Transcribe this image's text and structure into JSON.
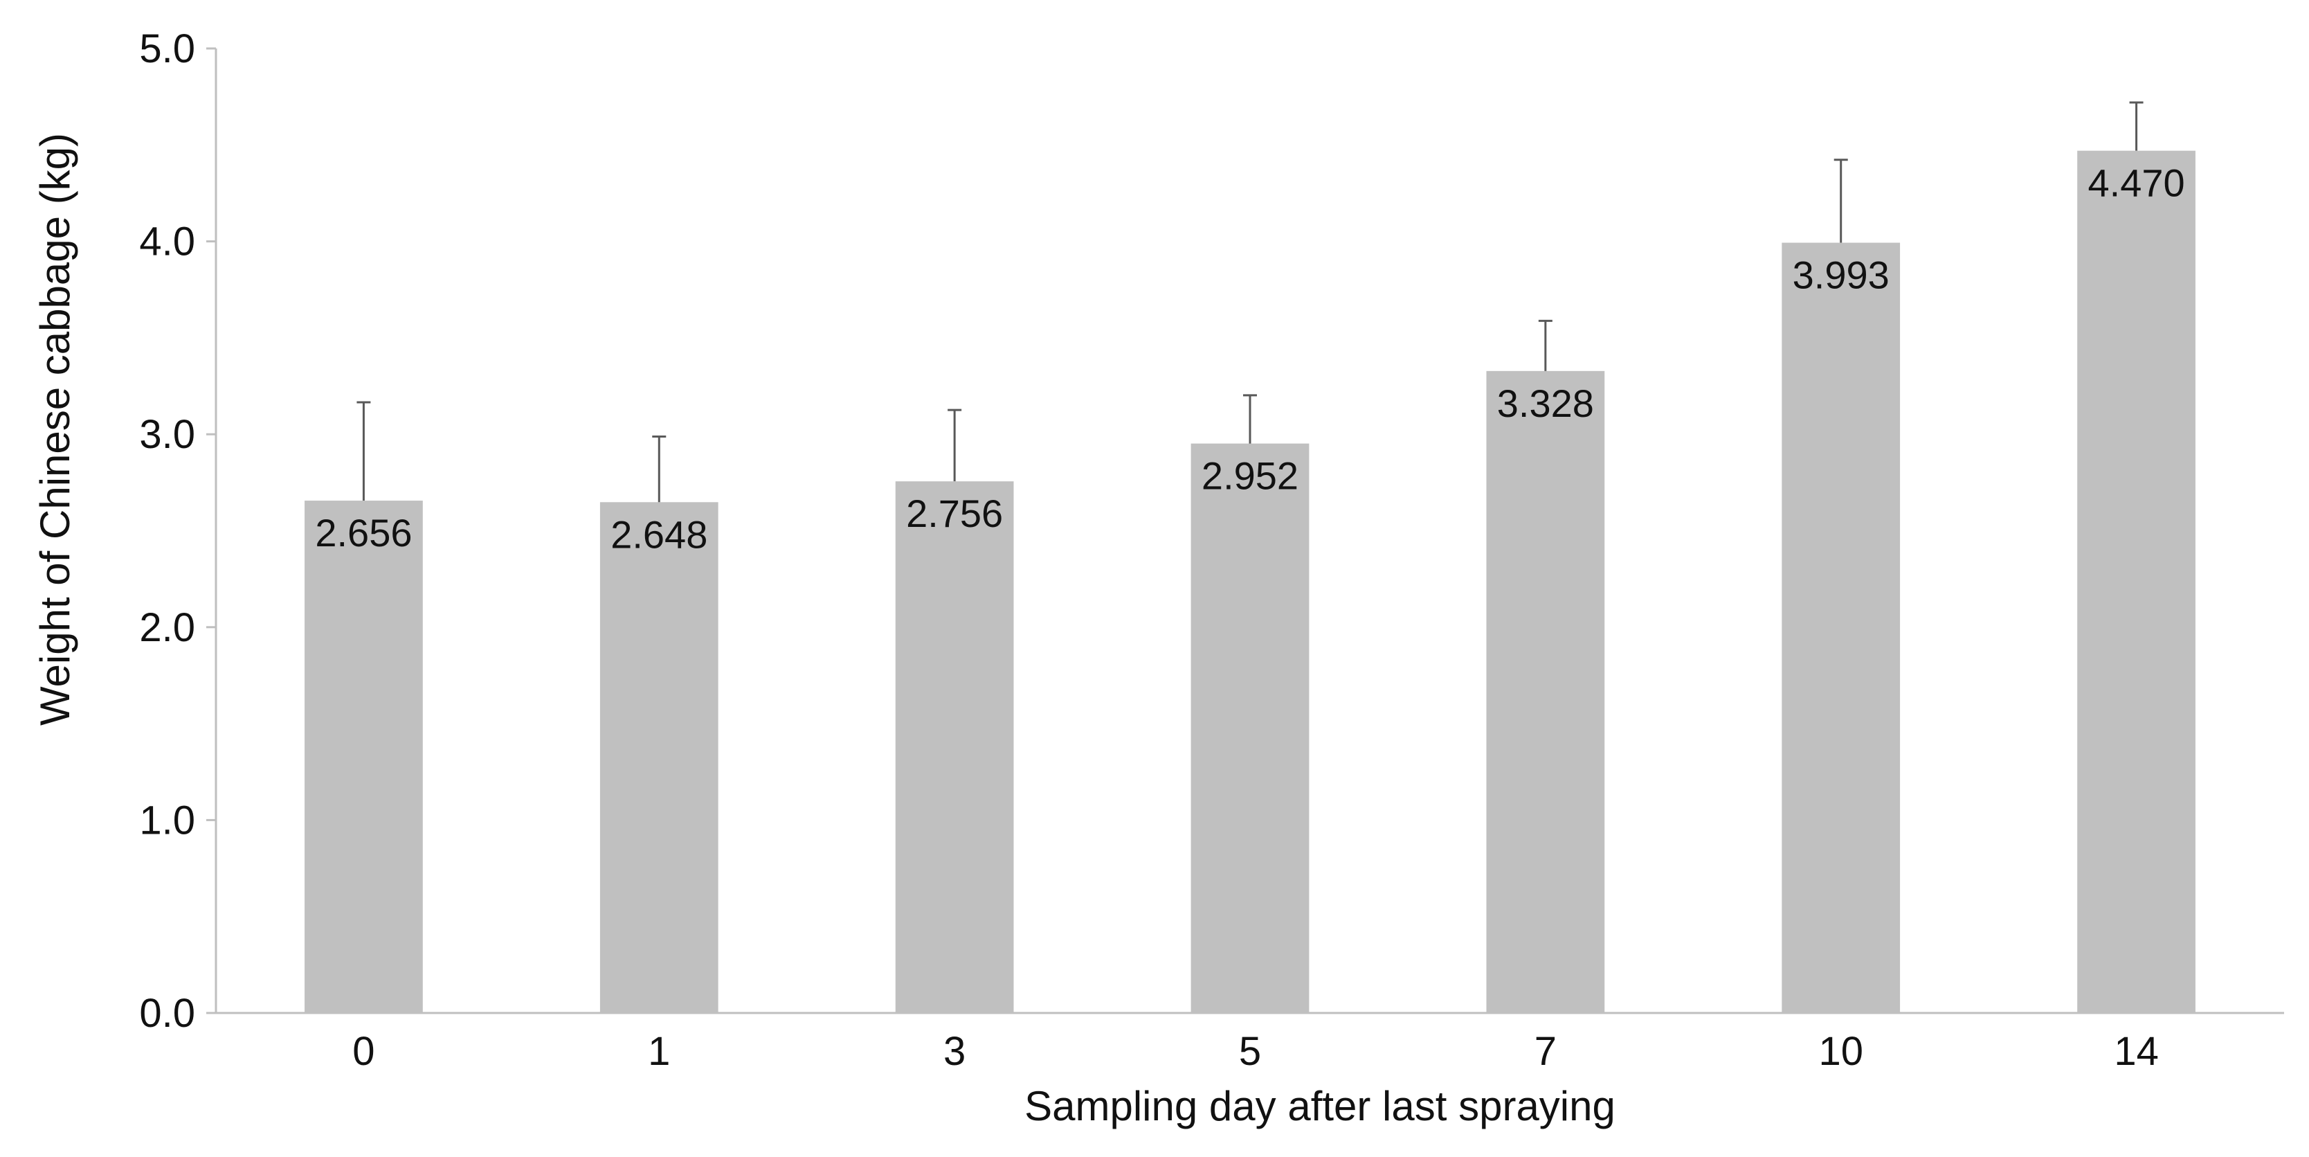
{
  "chart_data": {
    "type": "bar",
    "title": "",
    "xlabel": "Sampling day after last spraying",
    "ylabel": "Weight of Chinese cabbage (kg)",
    "categories": [
      "0",
      "1",
      "3",
      "5",
      "7",
      "10",
      "14"
    ],
    "values": [
      2.656,
      2.648,
      2.756,
      2.952,
      3.328,
      3.993,
      4.47
    ],
    "data_labels": [
      "2.656",
      "2.648",
      "2.756",
      "2.952",
      "3.328",
      "3.993",
      "4.470"
    ],
    "error_upper": [
      0.51,
      0.34,
      0.37,
      0.25,
      0.26,
      0.43,
      0.25
    ],
    "ylim": [
      0,
      5
    ],
    "yticks": [
      0,
      1,
      2,
      3,
      4,
      5
    ],
    "ytick_labels": [
      "0.0",
      "1.0",
      "2.0",
      "3.0",
      "4.0",
      "5.0"
    ],
    "grid": false,
    "legend": "none",
    "colors": {
      "bar": "#c0c0c0",
      "axis": "#bfbfbf",
      "error_bar": "#595959",
      "text": "#111111"
    }
  }
}
